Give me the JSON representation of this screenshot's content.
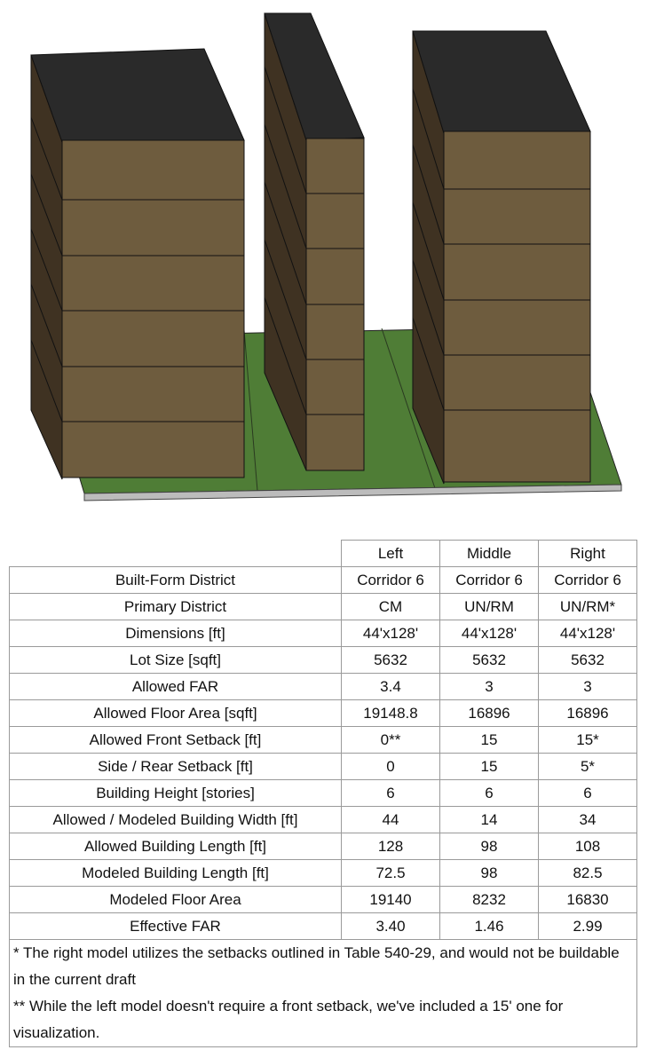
{
  "table": {
    "header": [
      "Left",
      "Middle",
      "Right"
    ],
    "rows": [
      [
        "Built-Form District",
        "Corridor 6",
        "Corridor 6",
        "Corridor 6"
      ],
      [
        "Primary District",
        "CM",
        "UN/RM",
        "UN/RM*"
      ],
      [
        "Dimensions [ft]",
        "44'x128'",
        "44'x128'",
        "44'x128'"
      ],
      [
        "Lot Size [sqft]",
        "5632",
        "5632",
        "5632"
      ],
      [
        "Allowed FAR",
        "3.4",
        "3",
        "3"
      ],
      [
        "Allowed Floor Area [sqft]",
        "19148.8",
        "16896",
        "16896"
      ],
      [
        "Allowed Front Setback [ft]",
        "0**",
        "15",
        "15*"
      ],
      [
        "Side / Rear Setback [ft]",
        "0",
        "15",
        "5*"
      ],
      [
        "Building Height [stories]",
        "6",
        "6",
        "6"
      ],
      [
        "Allowed / Modeled Building Width [ft]",
        "44",
        "14",
        "34"
      ],
      [
        "Allowed Building Length [ft]",
        "128",
        "98",
        "108"
      ],
      [
        "Modeled Building Length [ft]",
        "72.5",
        "98",
        "82.5"
      ],
      [
        "Modeled Floor Area",
        "19140",
        "8232",
        "16830"
      ],
      [
        "Effective FAR",
        "3.40",
        "1.46",
        "2.99"
      ]
    ],
    "notes": [
      "* The right model utilizes the setbacks outlined in Table 540-29, and would not be buildable in the current draft",
      "** While the left model doesn't require a front setback, we've included a 15' one for visualization."
    ]
  }
}
